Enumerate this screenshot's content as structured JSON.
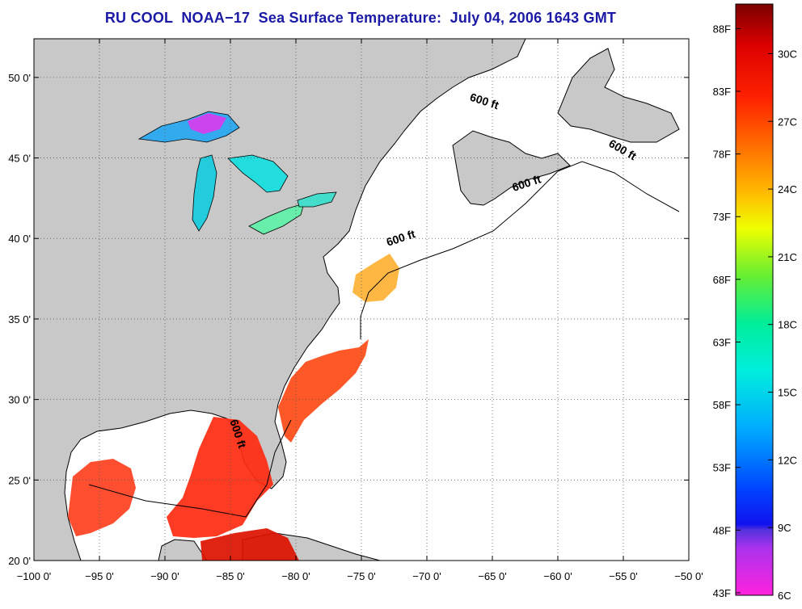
{
  "title": "RU COOL  NOAA−17  Sea Surface Temperature:  July 04, 2006 1643 GMT",
  "map": {
    "lon_range": [
      -100,
      -50
    ],
    "lat_range": [
      20,
      52.4
    ],
    "grid": true,
    "lon_ticks": [
      {
        "value": -100,
        "label": "−100 0'"
      },
      {
        "value": -95,
        "label": "−95 0'"
      },
      {
        "value": -90,
        "label": "−90 0'"
      },
      {
        "value": -85,
        "label": "−85 0'"
      },
      {
        "value": -80,
        "label": "−80 0'"
      },
      {
        "value": -75,
        "label": "−75 0'"
      },
      {
        "value": -70,
        "label": "−70 0'"
      },
      {
        "value": -65,
        "label": "−65 0'"
      },
      {
        "value": -60,
        "label": "−60 0'"
      },
      {
        "value": -55,
        "label": "−55 0'"
      },
      {
        "value": -50,
        "label": "−50 0'"
      }
    ],
    "lat_ticks": [
      {
        "value": 20,
        "label": "20 0'"
      },
      {
        "value": 25,
        "label": "25 0'"
      },
      {
        "value": 30,
        "label": "30 0'"
      },
      {
        "value": 35,
        "label": "35 0'"
      },
      {
        "value": 40,
        "label": "40 0'"
      },
      {
        "value": 45,
        "label": "45 0'"
      },
      {
        "value": 50,
        "label": "50 0'"
      }
    ],
    "contour_labels": [
      {
        "text": "600 ft",
        "lon": -65.7,
        "lat": 48.3,
        "angle": 18
      },
      {
        "text": "600 ft",
        "lon": -55.2,
        "lat": 45.3,
        "angle": 30
      },
      {
        "text": "600 ft",
        "lon": -62.3,
        "lat": 43.2,
        "angle": -18
      },
      {
        "text": "600 ft",
        "lon": -71.9,
        "lat": 39.8,
        "angle": -18
      },
      {
        "text": "600 ft",
        "lon": -84.7,
        "lat": 27.8,
        "angle": 72
      }
    ],
    "colors": {
      "land": "#c8c8c8",
      "ocean": "#ffffff",
      "grid": "#555555"
    }
  },
  "colorbar": {
    "range_c": [
      6,
      32.2
    ],
    "fahrenheit_ticks": [
      {
        "value": 43,
        "label": "43F"
      },
      {
        "value": 48,
        "label": "48F"
      },
      {
        "value": 53,
        "label": "53F"
      },
      {
        "value": 58,
        "label": "58F"
      },
      {
        "value": 63,
        "label": "63F"
      },
      {
        "value": 68,
        "label": "68F"
      },
      {
        "value": 73,
        "label": "73F"
      },
      {
        "value": 78,
        "label": "78F"
      },
      {
        "value": 83,
        "label": "83F"
      },
      {
        "value": 88,
        "label": "88F"
      }
    ],
    "celsius_ticks": [
      {
        "value": 6,
        "label": "6C"
      },
      {
        "value": 9,
        "label": "9C"
      },
      {
        "value": 12,
        "label": "12C"
      },
      {
        "value": 15,
        "label": "15C"
      },
      {
        "value": 18,
        "label": "18C"
      },
      {
        "value": 21,
        "label": "21C"
      },
      {
        "value": 24,
        "label": "24C"
      },
      {
        "value": 27,
        "label": "27C"
      },
      {
        "value": 30,
        "label": "30C"
      }
    ]
  }
}
